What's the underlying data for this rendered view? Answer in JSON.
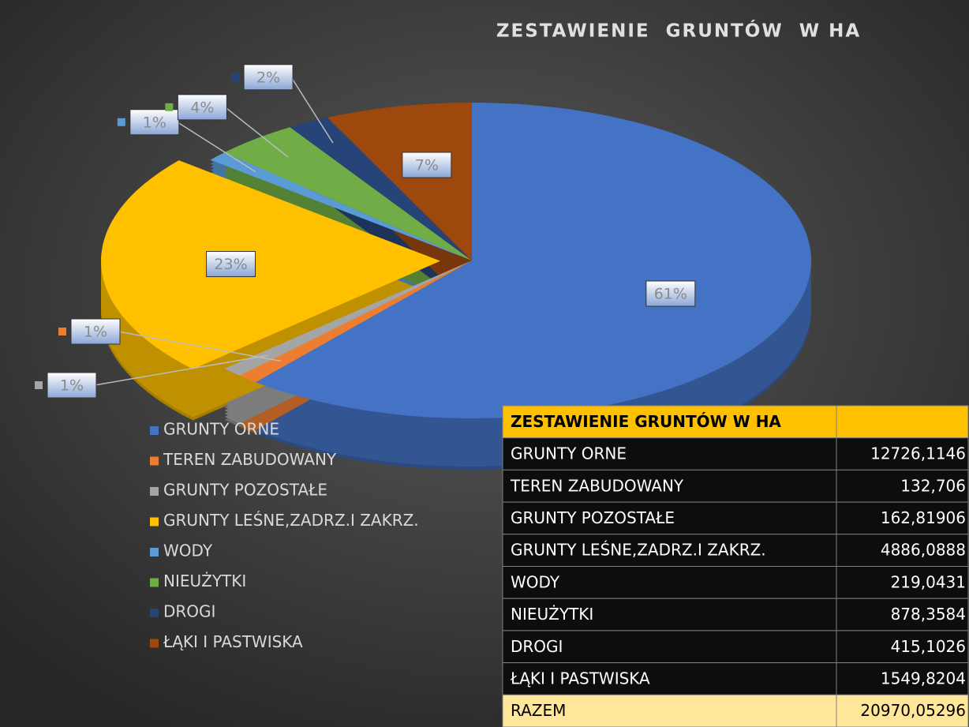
{
  "chart_data": {
    "type": "pie",
    "title": "ZESTAWIENIE  GRUNTÓW  W HA",
    "categories": [
      "GRUNTY ORNE",
      "TEREN ZABUDOWANY",
      "GRUNTY POZOSTAŁE",
      "GRUNTY LEŚNE,ZADRZ.I ZAKRZ.",
      "WODY",
      "NIEUŻYTKI",
      "DROGI",
      "ŁĄKI I PASTWISKA"
    ],
    "values": [
      61,
      1,
      1,
      23,
      1,
      4,
      2,
      7
    ],
    "value_labels": [
      "61%",
      "1%",
      "1%",
      "23%",
      "1%",
      "4%",
      "2%",
      "7%"
    ],
    "colors": [
      "#4472c4",
      "#ed7d31",
      "#a5a5a5",
      "#ffc000",
      "#5b9bd5",
      "#70ad47",
      "#264478",
      "#9e480e"
    ],
    "legend": "left"
  },
  "table": {
    "title": "ZESTAWIENIE GRUNTÓW W HA",
    "rows": [
      [
        "GRUNTY ORNE",
        "12726,1146"
      ],
      [
        "TEREN ZABUDOWANY",
        "132,706"
      ],
      [
        "GRUNTY POZOSTAŁE",
        "162,81906"
      ],
      [
        "GRUNTY LEŚNE,ZADRZ.I ZAKRZ.",
        "4886,0888"
      ],
      [
        "WODY",
        "219,0431"
      ],
      [
        "NIEUŻYTKI",
        "878,3584"
      ],
      [
        "DROGI",
        "415,1026"
      ],
      [
        "ŁĄKI I PASTWISKA",
        "1549,8204"
      ]
    ],
    "total": [
      "RAZEM",
      "20970,05296"
    ]
  }
}
